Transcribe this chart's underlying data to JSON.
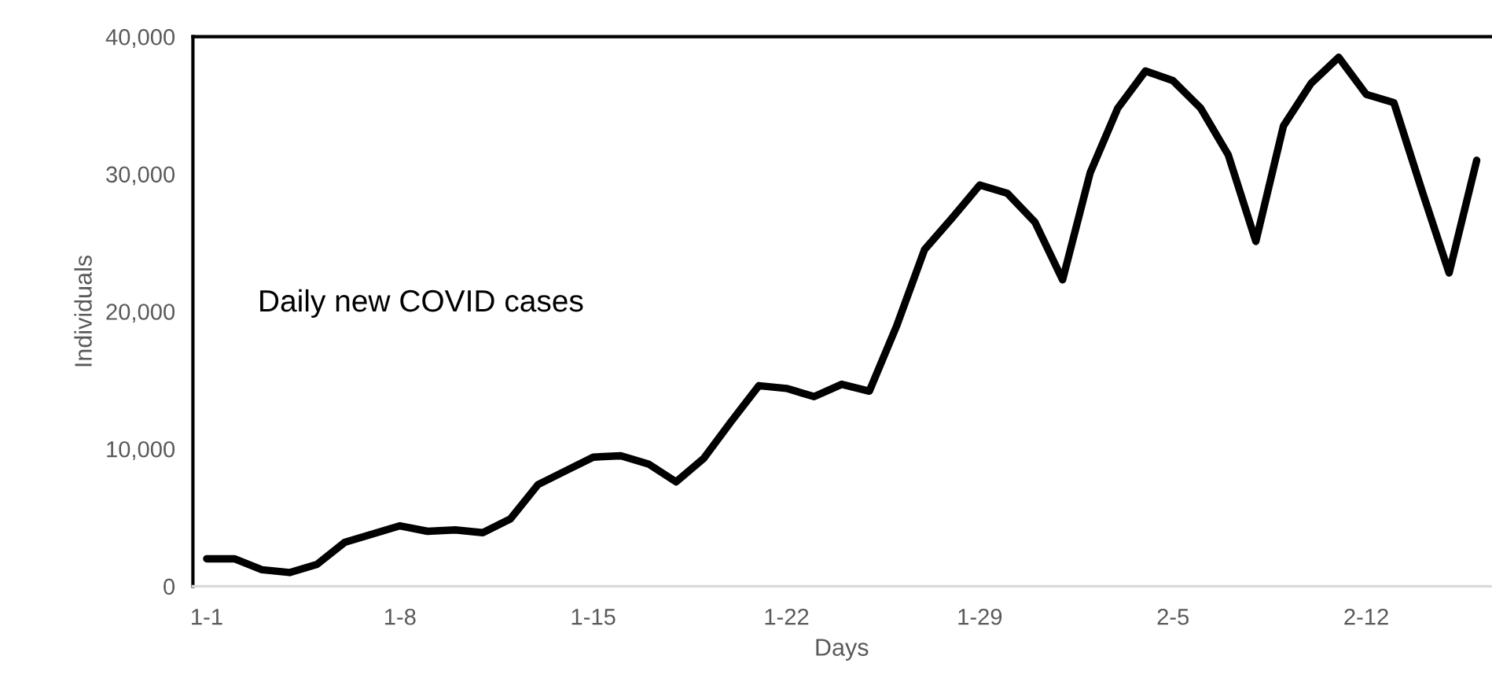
{
  "chart_data": {
    "type": "line",
    "xlabel": "Days",
    "ylabel": "Individuals",
    "annotations": [
      "Daily new COVID cases"
    ],
    "categories": [
      "1-1",
      null,
      null,
      null,
      null,
      null,
      null,
      "1-8",
      null,
      null,
      null,
      null,
      null,
      null,
      "1-15",
      null,
      null,
      null,
      null,
      null,
      null,
      "1-22",
      null,
      null,
      null,
      null,
      null,
      null,
      "1-29",
      null,
      null,
      null,
      null,
      null,
      null,
      "2-5",
      null,
      null,
      null,
      null,
      null,
      null,
      "2-12",
      null,
      null,
      null,
      null
    ],
    "series": [
      {
        "color": "#000000",
        "values": [
          2000,
          2000,
          1200,
          1000,
          1600,
          3200,
          3800,
          4400,
          4000,
          4100,
          3900,
          4900,
          7400,
          8400,
          9400,
          9500,
          8900,
          7600,
          9300,
          12000,
          14600,
          14400,
          13800,
          14700,
          14200,
          19000,
          24500,
          26800,
          29200,
          28600,
          26500,
          22300,
          30100,
          34800,
          37500,
          36800,
          34800,
          31400,
          25100,
          33500,
          36600,
          38500,
          35800,
          35200,
          28900,
          22800,
          31000
        ]
      }
    ],
    "ylim": [
      0,
      40000
    ],
    "yticks": [
      0,
      {
        "value": 10000,
        "label": "10,000"
      },
      {
        "value": 20000,
        "label": "20,000"
      },
      {
        "value": 30000,
        "label": "30,000"
      },
      {
        "value": 40000,
        "label": "40,000"
      }
    ],
    "grid": false,
    "marker": "none",
    "line_style": "solid"
  }
}
